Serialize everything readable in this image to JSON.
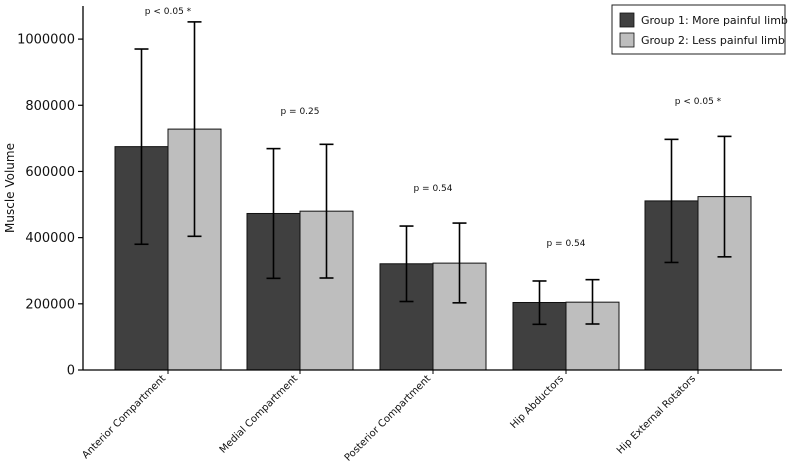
{
  "chart_data": {
    "type": "bar",
    "title": "",
    "xlabel": "",
    "ylabel": "Muscle Volume",
    "ylim": [
      0,
      1100000
    ],
    "yticks": [
      0,
      200000,
      400000,
      600000,
      800000,
      1000000
    ],
    "ytick_labels": [
      "0",
      "200000",
      "400000",
      "600000",
      "800000",
      "1000000"
    ],
    "categories": [
      "Anterior Compartment",
      "Medial Compartment",
      "Posterior Compartment",
      "Hip Abductors",
      "Hip External Rotators"
    ],
    "series": [
      {
        "name": "Group 1: More painful limb",
        "color": "#404040",
        "values": [
          675000,
          473000,
          321000,
          204000,
          511000
        ],
        "error_low": [
          380000,
          277000,
          207000,
          138000,
          325000
        ],
        "error_high": [
          970000,
          669000,
          435000,
          269000,
          697000
        ]
      },
      {
        "name": "Group 2: Less painful limb",
        "color": "#bebebe",
        "values": [
          728000,
          480000,
          323000,
          205000,
          524000
        ],
        "error_low": [
          404000,
          278000,
          203000,
          139000,
          342000
        ],
        "error_high": [
          1052000,
          682000,
          444000,
          273000,
          706000
        ]
      }
    ],
    "annotations": [
      "p < 0.05 *",
      "p = 0.25",
      "p = 0.54",
      "p = 0.54",
      "p < 0.05 *"
    ],
    "legend_position": "top-right",
    "grid": false
  }
}
